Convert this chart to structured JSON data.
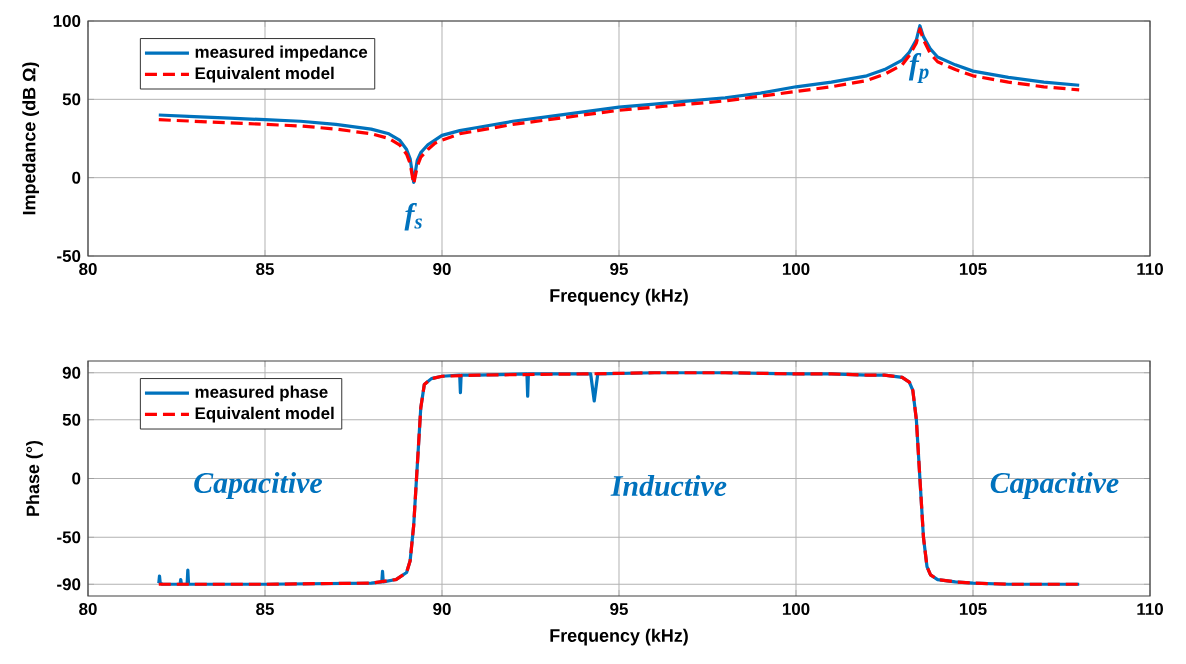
{
  "chart_data": [
    {
      "type": "line",
      "xlabel": "Frequency (kHz)",
      "ylabel": "Impedance (dB Ω)",
      "xlim": [
        80,
        110
      ],
      "xticks": [
        80,
        85,
        90,
        95,
        100,
        105,
        110
      ],
      "ylim": [
        -50,
        100
      ],
      "yticks": [
        -50,
        0,
        50,
        100
      ],
      "grid": true,
      "legend": "top left",
      "annotations": [
        "f$_{s}$",
        "f$_{p}$"
      ],
      "series": [
        {
          "name": "measured impedance",
          "color": "#0072bd",
          "line_style": "solid",
          "x": [
            82,
            83,
            84,
            85,
            86,
            87,
            88,
            88.5,
            88.8,
            89,
            89.1,
            89.2,
            89.3,
            89.4,
            89.6,
            89.8,
            90,
            90.5,
            91,
            92,
            93,
            94,
            95,
            96,
            97,
            98,
            99,
            100,
            101,
            102,
            102.5,
            103,
            103.2,
            103.4,
            103.5,
            103.6,
            103.8,
            104,
            104.5,
            105,
            106,
            107,
            108
          ],
          "values": [
            40,
            39,
            38,
            37,
            36,
            34,
            31,
            28,
            24,
            18,
            12,
            -3,
            11,
            16,
            21,
            24,
            27,
            30,
            32,
            36,
            39,
            42,
            45,
            47,
            49,
            51,
            54,
            58,
            61,
            65,
            69,
            75,
            80,
            88,
            97,
            90,
            82,
            77,
            72,
            68,
            64,
            61,
            59
          ]
        },
        {
          "name": "Equivalent model",
          "color": "#ff0000",
          "line_style": "dashed",
          "x": [
            82,
            83,
            84,
            85,
            86,
            87,
            88,
            88.5,
            88.8,
            89,
            89.1,
            89.2,
            89.3,
            89.4,
            89.6,
            89.8,
            90,
            90.5,
            91,
            92,
            93,
            94,
            95,
            96,
            97,
            98,
            99,
            100,
            101,
            102,
            102.5,
            103,
            103.2,
            103.4,
            103.5,
            103.6,
            103.8,
            104,
            104.5,
            105,
            106,
            107,
            108
          ],
          "values": [
            37,
            36,
            35,
            34,
            33,
            31,
            28,
            25,
            21,
            15,
            9,
            -4,
            7,
            13,
            18,
            22,
            24,
            28,
            30,
            34,
            37,
            40,
            43,
            45,
            47,
            49,
            52,
            55,
            58,
            62,
            66,
            72,
            78,
            86,
            95,
            88,
            79,
            74,
            69,
            65,
            61,
            58,
            56
          ]
        }
      ]
    },
    {
      "type": "line",
      "xlabel": "Frequency (kHz)",
      "ylabel": "Phase (°)",
      "xlim": [
        80,
        110
      ],
      "xticks": [
        80,
        85,
        90,
        95,
        100,
        105,
        110
      ],
      "ylim": [
        -100,
        100
      ],
      "yticks": [
        -90,
        -50,
        0,
        50,
        90
      ],
      "grid": true,
      "legend": "top left",
      "annotations": [
        "Capacitive",
        "Inductive",
        "Capacitive"
      ],
      "series": [
        {
          "name": "measured phase",
          "color": "#0072bd",
          "line_style": "solid",
          "x": [
            82,
            82.02,
            82.04,
            82.1,
            82.6,
            82.62,
            82.64,
            82.8,
            82.82,
            82.84,
            85,
            88,
            88.3,
            88.32,
            88.34,
            88.7,
            89,
            89.1,
            89.2,
            89.3,
            89.4,
            89.5,
            89.7,
            90,
            90.5,
            90.52,
            90.54,
            91,
            92.4,
            92.42,
            92.44,
            94.2,
            94.3,
            94.4,
            96,
            98,
            100,
            101,
            102,
            102.5,
            103,
            103.2,
            103.3,
            103.4,
            103.5,
            103.6,
            103.7,
            103.8,
            104,
            104.5,
            105,
            106,
            108
          ],
          "values": [
            -89,
            -83,
            -89,
            -90,
            -90,
            -86,
            -90,
            -90,
            -78,
            -90,
            -90,
            -89,
            -88,
            -79,
            -88,
            -86,
            -80,
            -70,
            -40,
            10,
            60,
            80,
            85,
            87,
            88,
            73,
            88,
            88,
            89,
            70,
            89,
            89,
            66,
            89,
            90,
            90,
            89,
            89,
            88,
            88,
            86,
            82,
            75,
            50,
            0,
            -50,
            -75,
            -82,
            -86,
            -88,
            -89,
            -90,
            -90
          ]
        },
        {
          "name": "Equivalent model",
          "color": "#ff0000",
          "line_style": "dashed",
          "x": [
            82,
            85,
            88,
            88.7,
            89,
            89.1,
            89.2,
            89.3,
            89.4,
            89.5,
            89.7,
            90,
            91,
            94,
            96,
            98,
            100,
            101,
            102,
            102.5,
            103,
            103.2,
            103.3,
            103.4,
            103.5,
            103.6,
            103.7,
            103.8,
            104,
            104.5,
            105,
            106,
            108
          ],
          "values": [
            -90,
            -90,
            -89,
            -86,
            -80,
            -70,
            -40,
            10,
            60,
            80,
            85,
            87,
            88,
            89,
            90,
            90,
            89,
            89,
            88,
            88,
            86,
            82,
            75,
            50,
            0,
            -50,
            -75,
            -82,
            -86,
            -88,
            -89,
            -90,
            -90
          ]
        }
      ]
    }
  ]
}
